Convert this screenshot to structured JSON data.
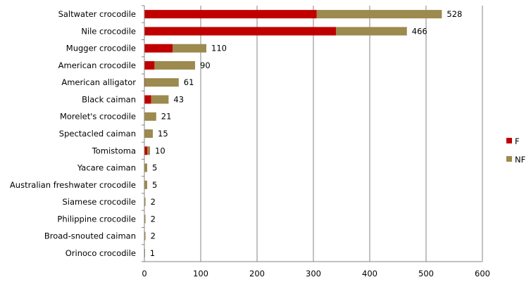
{
  "chart_data": {
    "type": "bar",
    "orientation": "horizontal",
    "stacked": true,
    "categories": [
      "Saltwater crocodile",
      "Nile crocodile",
      "Mugger crocodile",
      "American crocodile",
      "American alligator",
      "Black caiman",
      "Morelet's crocodile",
      "Spectacled caiman",
      "Tomistoma",
      "Yacare caiman",
      "Australian freshwater crocodile",
      "Siamese crocodile",
      "Philippine crocodile",
      "Broad-snouted caiman",
      "Orinoco crocodile"
    ],
    "series": [
      {
        "name": "F",
        "color": "#c00000",
        "values": [
          306,
          340,
          50,
          18,
          1,
          12,
          0,
          0,
          5,
          0,
          0,
          0,
          0,
          0,
          0
        ]
      },
      {
        "name": "NF",
        "color": "#9c8a4e",
        "values": [
          222,
          126,
          60,
          72,
          60,
          31,
          21,
          15,
          5,
          5,
          5,
          2,
          2,
          2,
          1
        ]
      }
    ],
    "totals": [
      528,
      466,
      110,
      90,
      61,
      43,
      21,
      15,
      10,
      5,
      5,
      2,
      2,
      2,
      1
    ],
    "xlim": [
      0,
      600
    ],
    "xticks": [
      0,
      100,
      200,
      300,
      400,
      500,
      600
    ],
    "grid": "vertical gridlines",
    "legend_position": "right",
    "title": "",
    "xlabel": "",
    "ylabel": ""
  }
}
